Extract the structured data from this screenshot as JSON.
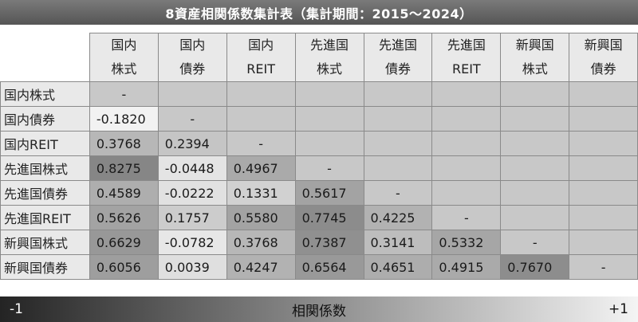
{
  "title": "8資産相関係数集計表（集計期間：2015～2024）",
  "columns": [
    {
      "line1": "国内",
      "line2": "株式"
    },
    {
      "line1": "国内",
      "line2": "債券"
    },
    {
      "line1": "国内",
      "line2": "REIT"
    },
    {
      "line1": "先進国",
      "line2": "株式"
    },
    {
      "line1": "先進国",
      "line2": "債券"
    },
    {
      "line1": "先進国",
      "line2": "REIT"
    },
    {
      "line1": "新興国",
      "line2": "株式"
    },
    {
      "line1": "新興国",
      "line2": "債券"
    }
  ],
  "rows": [
    {
      "label": "国内株式",
      "values": [
        "-"
      ]
    },
    {
      "label": "国内債券",
      "values": [
        "-0.1820",
        "-"
      ]
    },
    {
      "label": "国内REIT",
      "values": [
        "0.3768",
        "0.2394",
        "-"
      ]
    },
    {
      "label": "先進国株式",
      "values": [
        "0.8275",
        "-0.0448",
        "0.4967",
        "-"
      ]
    },
    {
      "label": "先進国債券",
      "values": [
        "0.4589",
        "-0.0222",
        "0.1331",
        "0.5617",
        "-"
      ]
    },
    {
      "label": "先進国REIT",
      "values": [
        "0.5626",
        "0.1757",
        "0.5580",
        "0.7745",
        "0.4225",
        "-"
      ]
    },
    {
      "label": "新興国株式",
      "values": [
        "0.6629",
        "-0.0782",
        "0.3768",
        "0.7387",
        "0.3141",
        "0.5332",
        "-"
      ]
    },
    {
      "label": "新興国債券",
      "values": [
        "0.6056",
        "0.0039",
        "0.4247",
        "0.6564",
        "0.4651",
        "0.4915",
        "0.7670",
        "-"
      ]
    }
  ],
  "scale": {
    "min_label": "-1",
    "max_label": "+1",
    "center_label": "相関係数"
  },
  "colors": {
    "scale_dark": "#242424",
    "scale_light": "#f4f4f4",
    "empty_cell": "#c8c8c8",
    "header_bg": "#e9e9e9"
  }
}
